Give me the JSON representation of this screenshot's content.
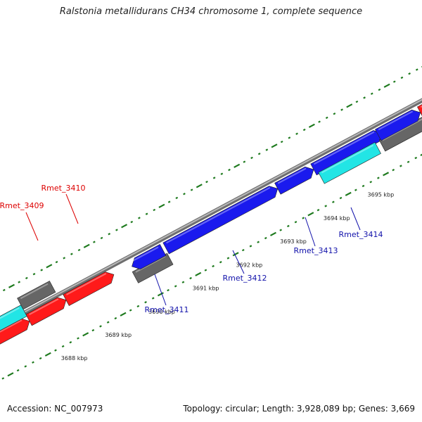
{
  "title": "Ralstonia metallidurans CH34 chromosome 1, complete sequence",
  "footer": {
    "accession": "Accession: NC_007973",
    "summary": "Topology: circular; Length: 3,928,089 bp; Genes: 3,669"
  },
  "colors": {
    "backbone": "#8c8c8c",
    "ticks": "#1e7a1e",
    "gene_red": "#ff1a1a",
    "gene_blue": "#1a1aee",
    "gene_cyan": "#22e5e5",
    "gene_gray": "#666666",
    "label_red": "#dd0000",
    "label_blue": "#1010aa"
  },
  "axis": {
    "unit": "kbp",
    "tick_labels": [
      "3688 kbp",
      "3689 kbp",
      "3690 kbp",
      "3691 kbp",
      "3692 kbp",
      "3693 kbp",
      "3694 kbp",
      "3695 kbp"
    ]
  },
  "gene_labels": [
    {
      "text": "Rmet_3409",
      "color": "red"
    },
    {
      "text": "Rmet_3410",
      "color": "red"
    },
    {
      "text": "Rmet_3411",
      "color": "blue"
    },
    {
      "text": "Rmet_3412",
      "color": "blue"
    },
    {
      "text": "Rmet_3413",
      "color": "blue"
    },
    {
      "text": "Rmet_3414",
      "color": "blue"
    }
  ]
}
